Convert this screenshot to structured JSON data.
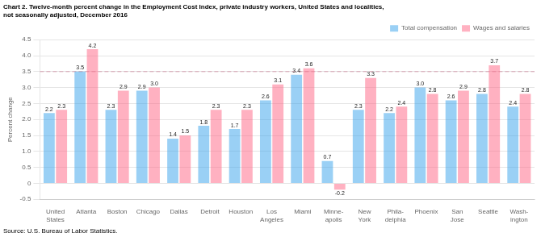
{
  "chart_data": {
    "type": "bar",
    "title": [
      "Chart 2. Twelve-month percent change in the Employment Cost Index, private industry workers, United States and localities,",
      "not seasonally adjusted, December 2016"
    ],
    "ylabel": "Percent change",
    "source": "Source: U.S. Bureau of Labor Statistics.",
    "categories": [
      "United\nStates",
      "Atlanta",
      "Boston",
      "Chicago",
      "Dallas",
      "Detroit",
      "Houston",
      "Los\nAngeles",
      "Miami",
      "Minne-\napolis",
      "New\nYork",
      "Phila-\ndelphia",
      "Phoenix",
      "San\nJose",
      "Seattle",
      "Wash-\nington"
    ],
    "series": [
      {
        "name": "Total compensation",
        "values": [
          2.2,
          3.5,
          2.3,
          2.9,
          1.4,
          1.8,
          1.7,
          2.6,
          3.4,
          0.7,
          2.3,
          2.2,
          3.0,
          2.6,
          2.8,
          2.4
        ],
        "value_labels": [
          "2.2",
          "3.5",
          "2.3",
          "2.9",
          "1.4",
          "1.8",
          "1.7",
          "2.6",
          "3.4",
          "0.7",
          "2.3",
          "2.2",
          "3.0",
          "2.6",
          "2.8",
          "2.4"
        ]
      },
      {
        "name": "Wages and salaries",
        "values": [
          2.3,
          4.2,
          2.9,
          3.0,
          1.5,
          2.3,
          2.3,
          3.1,
          3.6,
          -0.2,
          3.3,
          2.4,
          2.8,
          2.9,
          3.7,
          2.8
        ],
        "value_labels": [
          "2.3",
          "4.2",
          "2.9",
          "3.0",
          "1.5",
          "2.3",
          "2.3",
          "3.1",
          "3.6",
          "-0.2",
          "3.3",
          "2.4",
          "2.8",
          "2.9",
          "3.7",
          "2.8"
        ]
      }
    ],
    "ylim": [
      -0.5,
      4.5
    ],
    "yticks": [
      -0.5,
      0,
      0.5,
      {
        "value": 1,
        "label": "1.0"
      },
      1.5,
      {
        "value": 2,
        "label": "2.0"
      },
      2.5,
      {
        "value": 3,
        "label": "3.0"
      },
      3.5,
      {
        "value": 4,
        "label": "4.0"
      },
      4.5
    ],
    "hlines": [
      {
        "y": 3.5,
        "color": "#D4A0B0",
        "line_style": "dashed"
      }
    ],
    "grid": true,
    "legend": "upper right",
    "data_labels": true
  }
}
